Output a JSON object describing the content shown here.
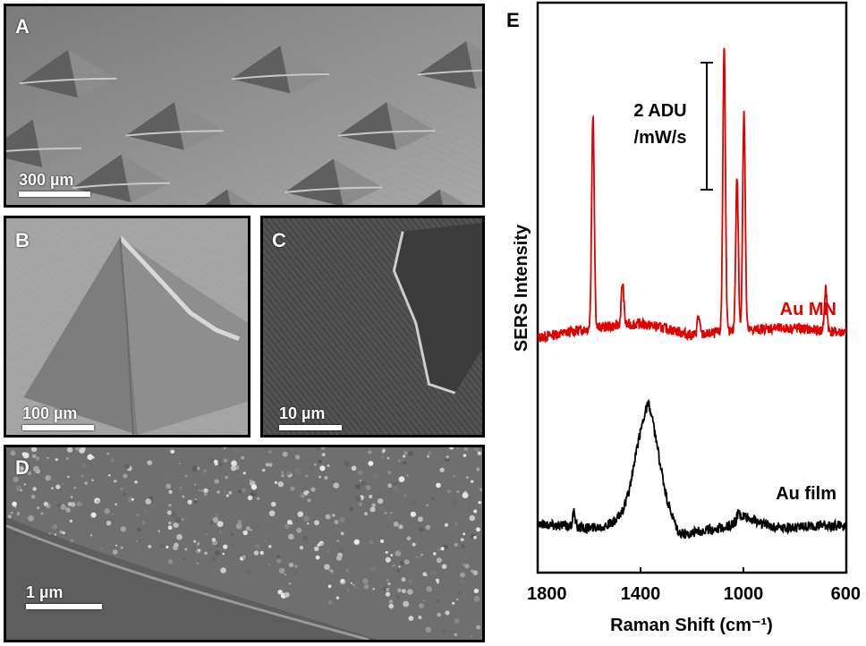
{
  "panels": {
    "a": {
      "label": "A",
      "scale": "300 µm"
    },
    "b": {
      "label": "B",
      "scale": "100 µm"
    },
    "c": {
      "label": "C",
      "scale": "10 µm"
    },
    "d": {
      "label": "D",
      "scale": "1 µm"
    },
    "e": {
      "label": "E"
    }
  },
  "chart_data": {
    "type": "line",
    "xlabel": "Raman Shift (cm⁻¹)",
    "ylabel": "SERS Intensity",
    "xlim": [
      1800,
      600
    ],
    "x_reversed": true,
    "x_ticks": [
      1800,
      1400,
      1000,
      600
    ],
    "y_ticks_shown": false,
    "scale_bar_label": [
      "2 ADU",
      "/mW/s"
    ],
    "series": [
      {
        "name": "Au MN",
        "color": "#e00000",
        "baseline": 5.1,
        "peaks": [
          [
            1585,
            4.6
          ],
          [
            1470,
            0.9
          ],
          [
            1175,
            0.4
          ],
          [
            1075,
            6.1
          ],
          [
            1025,
            3.3
          ],
          [
            998,
            4.7
          ],
          [
            680,
            0.9
          ]
        ],
        "points": [
          [
            1800,
            5.0
          ],
          [
            1700,
            5.1
          ],
          [
            1600,
            5.2
          ],
          [
            1500,
            5.25
          ],
          [
            1400,
            5.3
          ],
          [
            1300,
            5.2
          ],
          [
            1200,
            5.05
          ],
          [
            1100,
            5.1
          ],
          [
            1000,
            5.15
          ],
          [
            900,
            5.2
          ],
          [
            800,
            5.2
          ],
          [
            700,
            5.15
          ],
          [
            600,
            5.1
          ]
        ]
      },
      {
        "name": "Au film",
        "color": "#000000",
        "baseline": 1.0,
        "peaks": [
          [
            1660,
            0.3
          ],
          [
            1375,
            1.3
          ],
          [
            1020,
            0.15
          ]
        ],
        "points": [
          [
            1800,
            1.05
          ],
          [
            1700,
            1.0
          ],
          [
            1600,
            0.95
          ],
          [
            1500,
            1.05
          ],
          [
            1450,
            1.3
          ],
          [
            1400,
            1.9
          ],
          [
            1370,
            2.3
          ],
          [
            1300,
            1.3
          ],
          [
            1250,
            0.8
          ],
          [
            1150,
            0.9
          ],
          [
            1050,
            1.0
          ],
          [
            1000,
            1.2
          ],
          [
            900,
            1.0
          ],
          [
            800,
            0.95
          ],
          [
            700,
            1.0
          ],
          [
            600,
            1.0
          ]
        ]
      }
    ]
  }
}
